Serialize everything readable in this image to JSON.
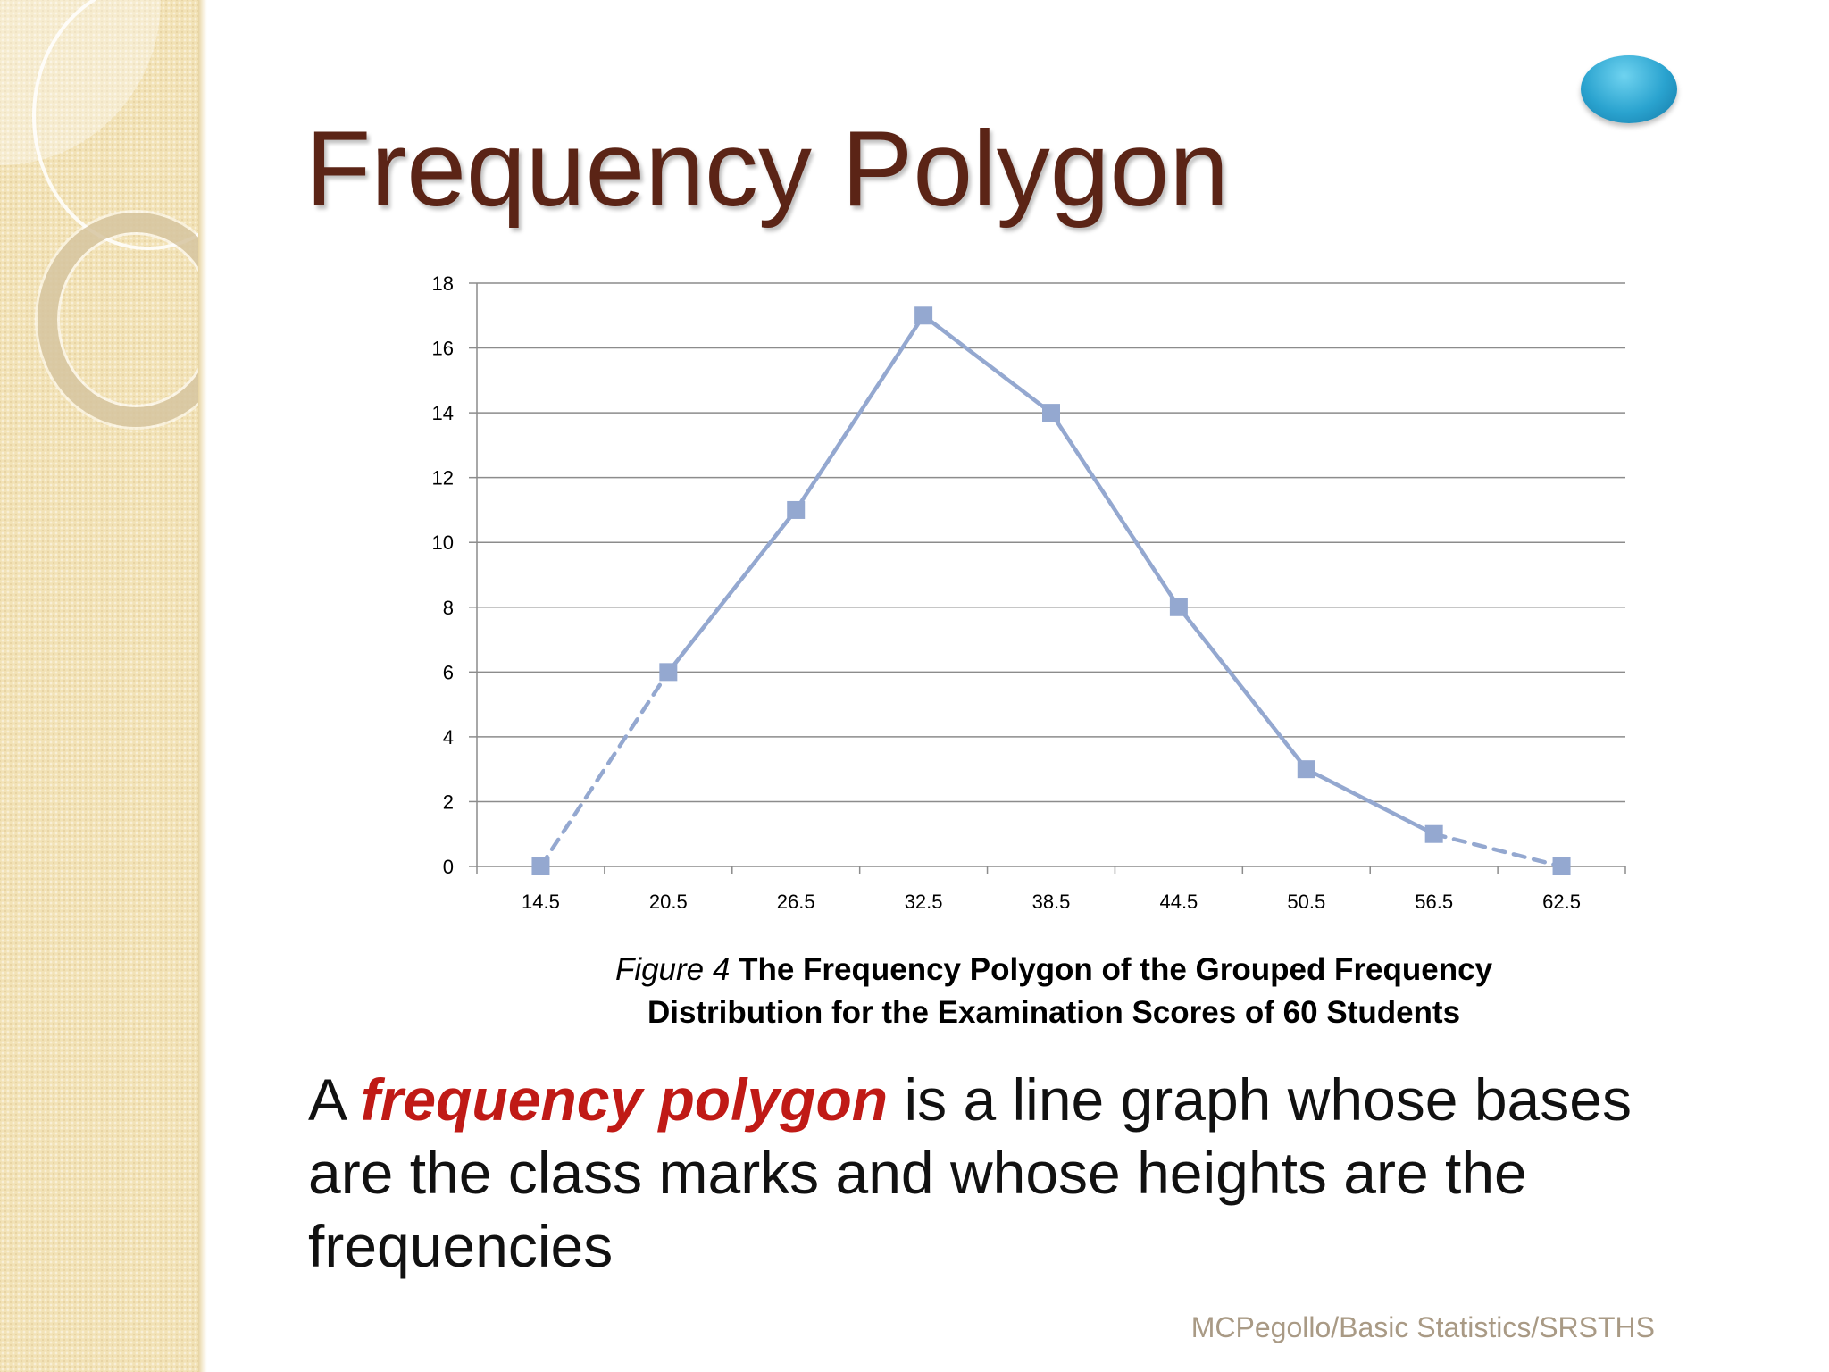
{
  "slide": {
    "title": "Frequency Polygon",
    "caption_figure": "Figure 4",
    "caption_text": "The Frequency Polygon of the Grouped Frequency Distribution for the Examination Scores of 60 Students",
    "definition_lead": "A ",
    "definition_term": "frequency polygon",
    "definition_rest": " is a line graph whose bases are the class marks and whose heights are the frequencies",
    "footer": "MCPegollo/Basic Statistics/SRSTHS"
  },
  "colors": {
    "title": "#5b2416",
    "series": "#94a8d0",
    "grid": "#8c8c8c",
    "definition_term": "#c01a16",
    "footer": "#a99a85"
  },
  "chart_data": {
    "type": "line",
    "title": "",
    "xlabel": "",
    "ylabel": "",
    "categories": [
      "14.5",
      "20.5",
      "26.5",
      "32.5",
      "38.5",
      "44.5",
      "50.5",
      "56.5",
      "62.5"
    ],
    "series": [
      {
        "values": [
          0,
          6,
          11,
          17,
          14,
          8,
          3,
          1,
          0
        ],
        "marker": "square",
        "dashed_segments": [
          0,
          7
        ]
      }
    ],
    "ylim": [
      0,
      18
    ],
    "yticks": [
      0,
      2,
      4,
      6,
      8,
      10,
      12,
      14,
      16,
      18
    ],
    "grid": true,
    "legend": "none"
  }
}
